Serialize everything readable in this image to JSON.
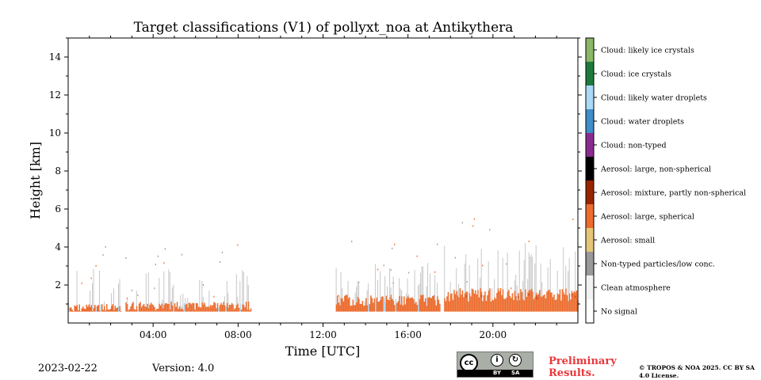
{
  "header": {
    "title": "Target classifications (V1) of pollyxt_noa at Antikythera"
  },
  "footer": {
    "date": "2023-02-22",
    "version": "Version: 4.0",
    "preliminary": "Preliminary Results.",
    "copyright": "© TROPOS & NOA 2025. CC BY SA 4.0 License.",
    "license_badge": {
      "cc": "cc",
      "by": "BY",
      "sa": "SA"
    }
  },
  "chart_data": {
    "type": "heatmap",
    "title": "Target classifications (V1) of pollyxt_noa at Antikythera",
    "xlabel": "Time [UTC]",
    "ylabel": "Height [km]",
    "xlim": [
      0,
      24
    ],
    "ylim": [
      0,
      15
    ],
    "xticks": [
      4,
      8,
      12,
      16,
      20
    ],
    "xtick_labels": [
      "04:00",
      "08:00",
      "12:00",
      "16:00",
      "20:00"
    ],
    "yticks": [
      2,
      4,
      6,
      8,
      10,
      12,
      14
    ],
    "ytick_labels": [
      "2",
      "4",
      "6",
      "8",
      "10",
      "12",
      "14"
    ],
    "colorbar": [
      {
        "label": "No signal",
        "color": "#ffffff"
      },
      {
        "label": "Clean atmosphere",
        "color": "#f2f2f2"
      },
      {
        "label": "Non-typed particles/low conc.",
        "color": "#999999"
      },
      {
        "label": "Aerosol: small",
        "color": "#e5c679"
      },
      {
        "label": "Aerosol: large, spherical",
        "color": "#ec6c2e"
      },
      {
        "label": "Aerosol: mixture, partly non-spherical",
        "color": "#992400"
      },
      {
        "label": "Aerosol: large, non-spherical",
        "color": "#000000"
      },
      {
        "label": "Cloud: non-typed",
        "color": "#8a2c8f"
      },
      {
        "label": "Cloud: water droplets",
        "color": "#3f8dc9"
      },
      {
        "label": "Cloud: likely water droplets",
        "color": "#a9d9f5"
      },
      {
        "label": "Cloud: ice crystals",
        "color": "#1d7a3c"
      },
      {
        "label": "Cloud: likely ice crystals",
        "color": "#8bb768"
      }
    ],
    "data_segments": [
      {
        "start": 0.0,
        "end": 2.5,
        "layer_top_km": 0.8,
        "sparse_top_km": 4.5
      },
      {
        "start": 2.7,
        "end": 8.6,
        "layer_top_km": 0.9,
        "sparse_top_km": 4.2
      },
      {
        "start": 12.6,
        "end": 17.5,
        "layer_top_km": 1.2,
        "sparse_top_km": 4.5
      },
      {
        "start": 17.7,
        "end": 24.0,
        "layer_top_km": 1.5,
        "sparse_top_km": 6.0
      }
    ]
  }
}
